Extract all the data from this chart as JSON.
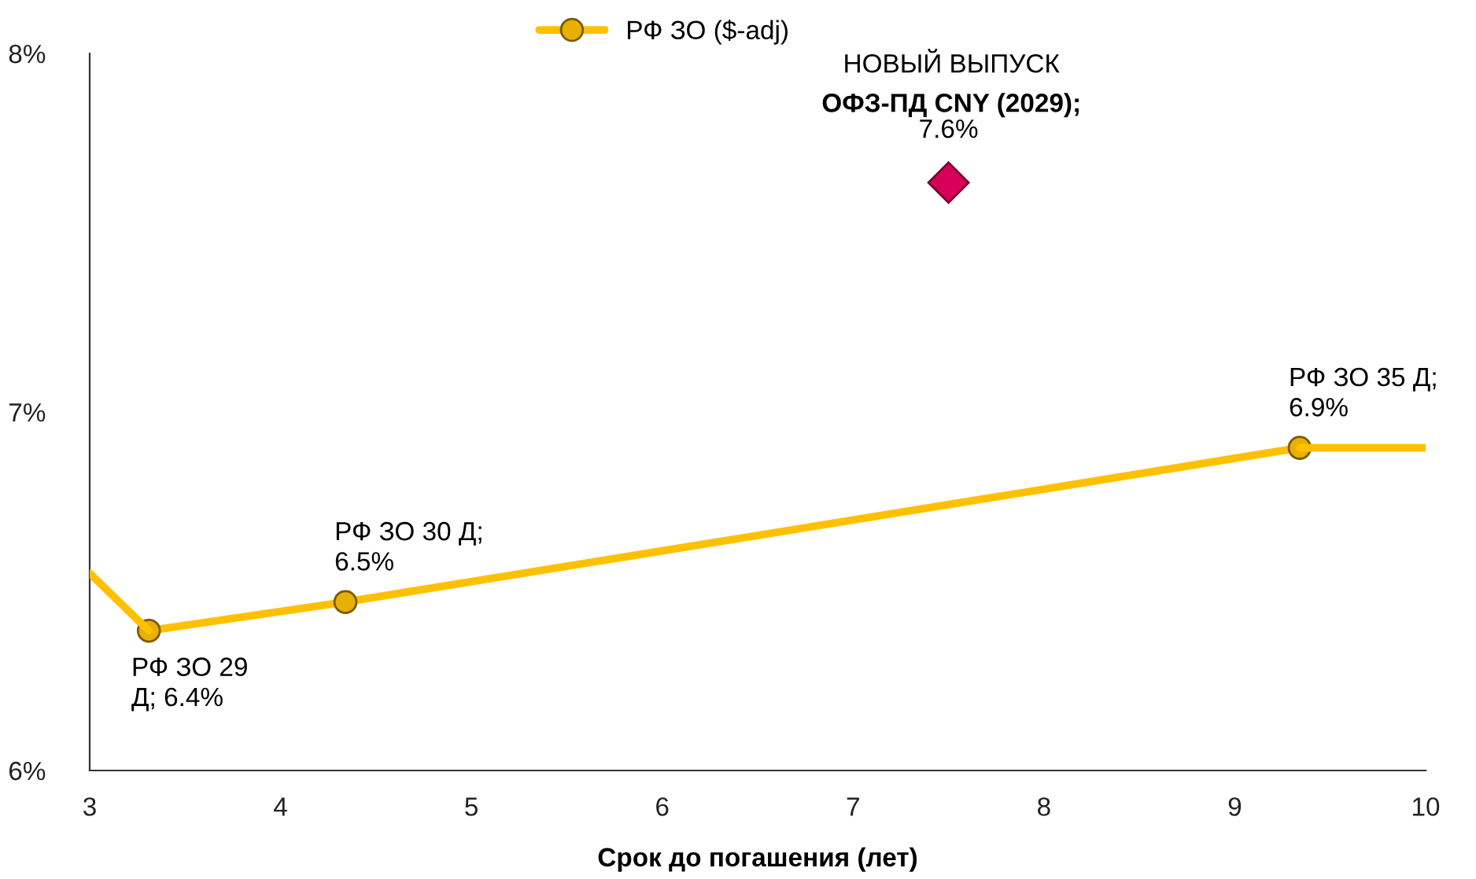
{
  "chart_data": {
    "type": "line",
    "xlabel": "Срок до погашения (лет)",
    "xlim": [
      3,
      10
    ],
    "xticks": [
      3,
      4,
      5,
      6,
      7,
      8,
      9,
      10
    ],
    "ylim": [
      6,
      8
    ],
    "yticks": [
      {
        "value": 6,
        "label": "6%"
      },
      {
        "value": 7,
        "label": "7%"
      },
      {
        "value": 8,
        "label": "8%"
      }
    ],
    "grid": false,
    "legend": "top",
    "series": [
      {
        "name": "РФ ЗО ($-adj)",
        "color": "#ffc000",
        "marker": "circle",
        "x": [
          3.31,
          4.34,
          9.34
        ],
        "values": [
          6.39,
          6.47,
          6.9
        ]
      },
      {
        "color": "#ffc000",
        "marker": "none",
        "x": [
          3,
          3.31
        ],
        "values": [
          6.55,
          6.39
        ]
      },
      {
        "color": "#ffc000",
        "marker": "none",
        "x": [
          9.34,
          10
        ],
        "values": [
          6.9,
          6.9
        ]
      },
      {
        "type": "scatter",
        "color": "#d6005a",
        "marker": "diamond",
        "x": [
          7.5
        ],
        "values": [
          7.64
        ]
      }
    ],
    "annotations": [
      {
        "text": "РФ ЗО 29\nД; 6.4%",
        "x": 3.31,
        "y": 6.39
      },
      {
        "text": "РФ ЗО 30 Д;\n6.5%",
        "x": 4.34,
        "y": 6.47
      },
      {
        "text": "РФ ЗО 35 Д;\n6.9%",
        "x": 9.34,
        "y": 6.9
      },
      "НОВЫЙ ВЫПУСК",
      "ОФЗ-ПД CNY (2029);",
      {
        "text": "7.6%",
        "x": 7.5,
        "y": 7.64
      }
    ]
  }
}
